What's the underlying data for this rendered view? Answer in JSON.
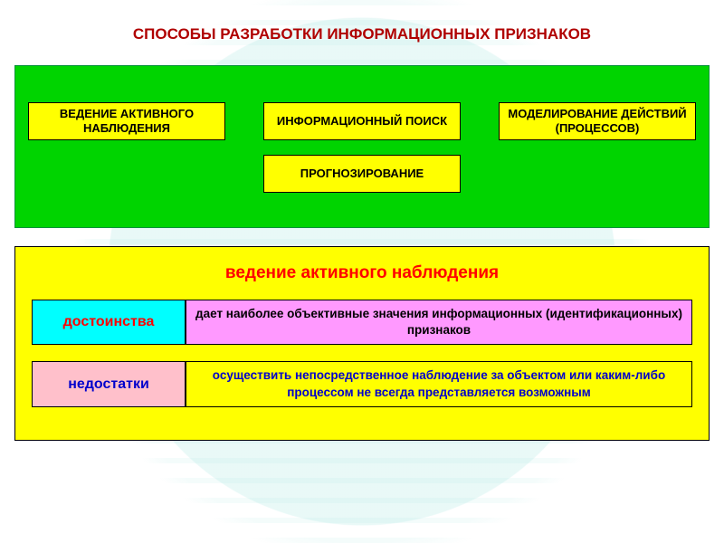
{
  "colors": {
    "title": "#b00000",
    "green_box_bg": "#00d400",
    "yellow_card_bg": "#ffff00",
    "yellow_panel_bg": "#ffff00",
    "subhead_text": "#ff0000",
    "adv_label_bg": "#00ffff",
    "adv_label_text": "#ff0000",
    "adv_desc_bg": "#ff99ff",
    "dis_label_bg": "#ffc0cb",
    "dis_label_text": "#0000cc",
    "dis_desc_bg": "#ffff00",
    "dis_desc_text": "#0000cc",
    "black": "#000000"
  },
  "layout": {
    "method_card_height": 42,
    "method_card_widths": [
      218,
      218,
      218
    ],
    "bottom_card_width": 218
  },
  "title": "СПОСОБЫ РАЗРАБОТКИ ИНФОРМАЦИОННЫХ ПРИЗНАКОВ",
  "methods": {
    "m1": "ВЕДЕНИЕ АКТИВНОГО НАБЛЮДЕНИЯ",
    "m2": "ИНФОРМАЦИОННЫЙ ПОИСК",
    "m3": "МОДЕЛИРОВАНИЕ ДЕЙСТВИЙ (ПРОЦЕССОВ)",
    "m4": "ПРОГНОЗИРОВАНИЕ"
  },
  "detail": {
    "heading": "ведение активного наблюдения",
    "advantage_label": "достоинства",
    "advantage_text": "дает наиболее объективные значения информационных (идентификационных) признаков",
    "disadvantage_label": "недостатки",
    "disadvantage_text": "осуществить непосредственное наблюдение за объектом или каким-либо процессом не всегда представляется возможным"
  }
}
